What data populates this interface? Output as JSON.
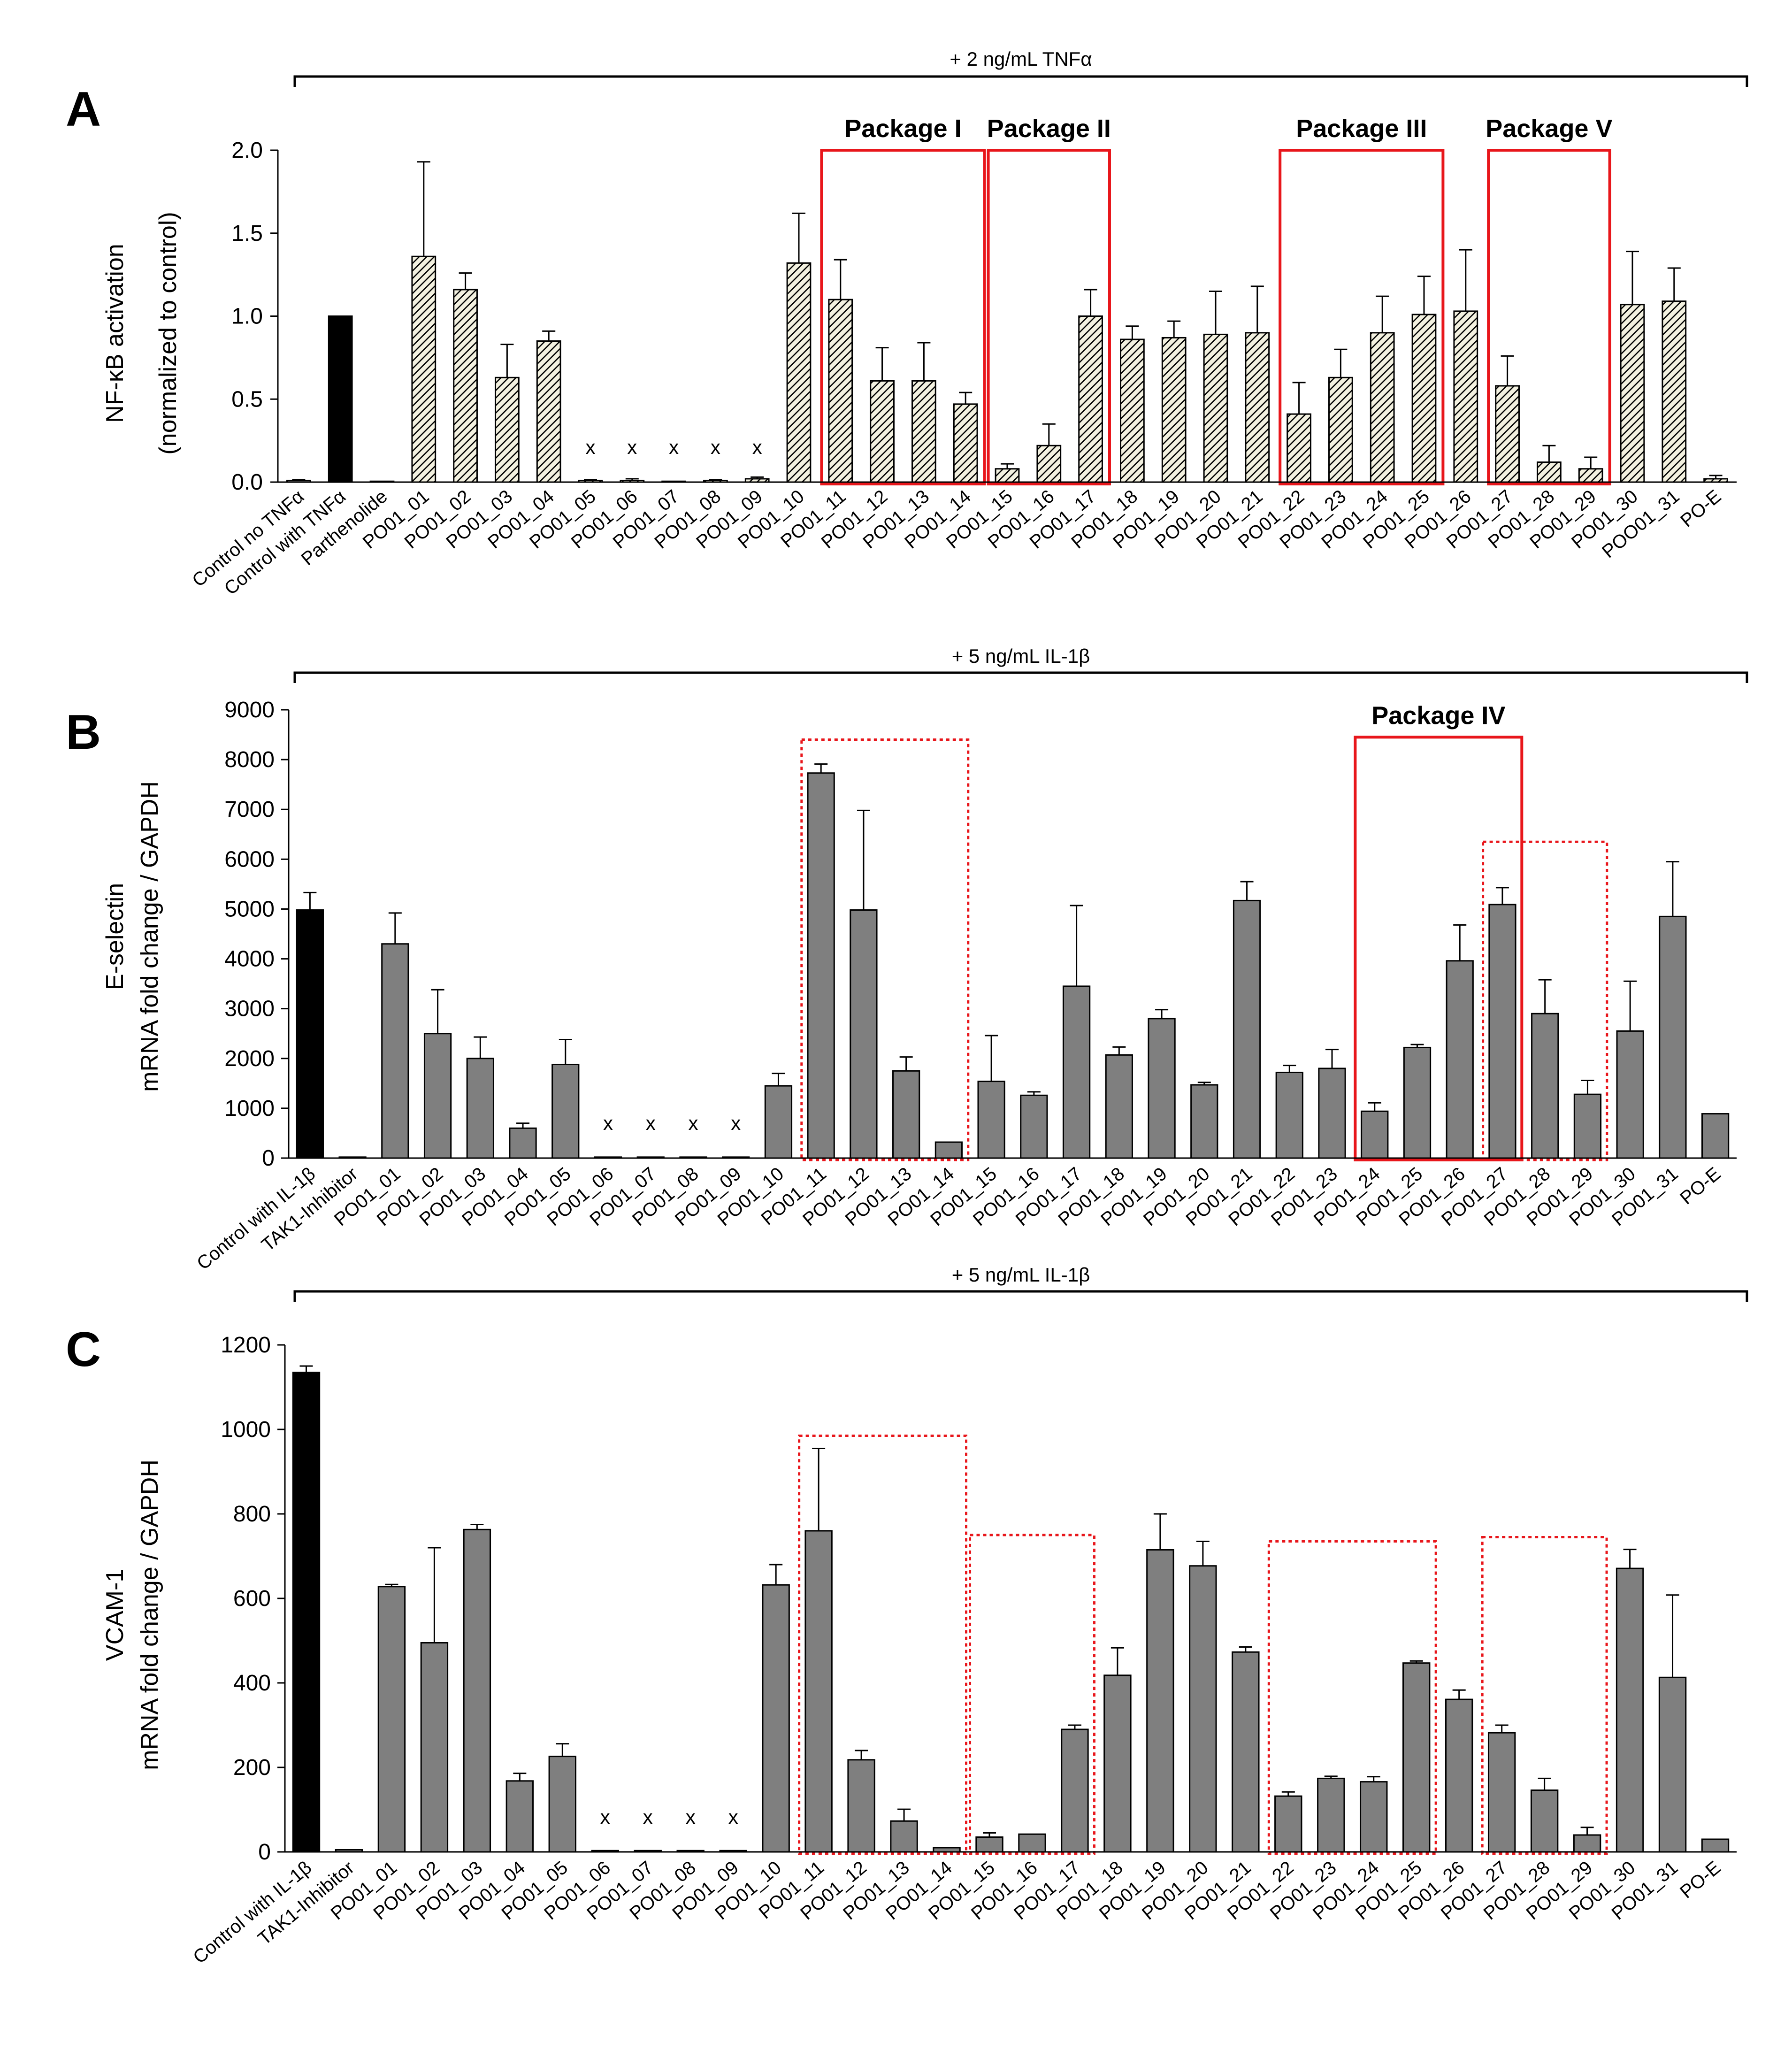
{
  "figure_colors": {
    "bar_control": "#000000",
    "bar_gray": "#7f7f7f",
    "bar_hatch_bg": "#f3f1e0",
    "box_red": "#e8161b"
  },
  "chart_data": [
    {
      "panel": "A",
      "type": "bar",
      "treatment": "+ 2 ng/mL TNFα",
      "ylabel_lines": [
        "NF-κB activation",
        "(normalized to control)"
      ],
      "ylim": [
        0,
        2.0
      ],
      "yticks": [
        "0.0",
        "0.5",
        "1.0",
        "1.5",
        "2.0"
      ],
      "tick_values": [
        0,
        0.5,
        1.0,
        1.5,
        2.0
      ],
      "categories": [
        "Control no TNFα",
        "Control with TNFα",
        "Parthenolide",
        "PO01_01",
        "PO01_02",
        "PO01_03",
        "PO01_04",
        "PO01_05",
        "PO01_06",
        "PO01_07",
        "PO01_08",
        "PO01_09",
        "PO01_10",
        "PO01_11",
        "PO01_12",
        "PO01_13",
        "PO01_14",
        "PO01_15",
        "PO01_16",
        "PO01_17",
        "PO01_18",
        "PO01_19",
        "PO01_20",
        "PO01_21",
        "PO01_22",
        "PO01_23",
        "PO01_24",
        "PO01_25",
        "PO01_26",
        "PO01_27",
        "PO01_28",
        "PO01_29",
        "PO01_30",
        "POO01_31",
        "PO-E"
      ],
      "values": [
        0.01,
        1.0,
        0.005,
        1.36,
        1.16,
        0.63,
        0.85,
        0.01,
        0.01,
        0.005,
        0.01,
        0.02,
        1.32,
        1.1,
        0.61,
        0.61,
        0.47,
        0.08,
        0.22,
        1.0,
        0.86,
        0.87,
        0.89,
        0.9,
        0.41,
        0.63,
        0.9,
        1.01,
        1.03,
        0.58,
        0.12,
        0.08,
        1.07,
        1.09,
        0.02
      ],
      "errors": [
        0.005,
        0,
        0,
        0.57,
        0.1,
        0.2,
        0.06,
        0.005,
        0.01,
        0,
        0.005,
        0.01,
        0.3,
        0.24,
        0.2,
        0.23,
        0.07,
        0.03,
        0.13,
        0.16,
        0.08,
        0.1,
        0.26,
        0.28,
        0.19,
        0.17,
        0.22,
        0.23,
        0.37,
        0.18,
        0.1,
        0.07,
        0.32,
        0.2,
        0.02
      ],
      "control_index": 1,
      "x_marks": [
        "x",
        "x",
        "x",
        "x",
        "x"
      ],
      "x_mark_indices": [
        7,
        8,
        9,
        10,
        11
      ],
      "packages": [
        {
          "label": "Package I",
          "start": 13,
          "end": 16,
          "top_value": 2.0,
          "style": "solid"
        },
        {
          "label": "Package II",
          "start": 17,
          "end": 19,
          "top_value": 2.0,
          "style": "solid"
        },
        {
          "label": "Package III",
          "start": 24,
          "end": 27,
          "top_value": 2.0,
          "style": "solid"
        },
        {
          "label": "Package V",
          "start": 29,
          "end": 31,
          "top_value": 2.0,
          "style": "solid"
        }
      ]
    },
    {
      "panel": "B",
      "type": "bar",
      "treatment": "+ 5 ng/mL IL-1β",
      "ylabel_lines": [
        "E-selectin",
        "mRNA fold change / GAPDH"
      ],
      "ylim": [
        0,
        9000
      ],
      "yticks": [
        "0",
        "1000",
        "2000",
        "3000",
        "4000",
        "5000",
        "6000",
        "7000",
        "8000",
        "9000"
      ],
      "tick_values": [
        0,
        1000,
        2000,
        3000,
        4000,
        5000,
        6000,
        7000,
        8000,
        9000
      ],
      "categories": [
        "Control with IL-1β",
        "TAK1-Inhibitor",
        "PO01_01",
        "PO01_02",
        "PO01_03",
        "PO01_04",
        "PO01_05",
        "PO01_06",
        "PO01_07",
        "PO01_08",
        "PO01_09",
        "PO01_10",
        "PO01_11",
        "PO01_12",
        "PO01_13",
        "PO01_14",
        "PO01_15",
        "PO01_16",
        "PO01_17",
        "PO01_18",
        "PO01_19",
        "PO01_20",
        "PO01_21",
        "PO01_22",
        "PO01_23",
        "PO01_24",
        "PO01_25",
        "PO01_26",
        "PO01_27",
        "PO01_28",
        "PO01_29",
        "PO01_30",
        "PO01_31",
        "PO-E"
      ],
      "values": [
        4980,
        20,
        4300,
        2500,
        2000,
        600,
        1880,
        20,
        20,
        20,
        20,
        1450,
        7730,
        4980,
        1750,
        320,
        1540,
        1260,
        3450,
        2070,
        2800,
        1470,
        5170,
        1720,
        1800,
        940,
        2220,
        3960,
        5090,
        2900,
        1280,
        2550,
        4850,
        890
      ],
      "errors": [
        350,
        0,
        620,
        880,
        430,
        100,
        500,
        0,
        0,
        0,
        0,
        250,
        180,
        2000,
        280,
        0,
        920,
        70,
        1620,
        160,
        180,
        50,
        380,
        140,
        380,
        170,
        60,
        720,
        340,
        680,
        280,
        1000,
        1100,
        0
      ],
      "control_index": 0,
      "x_marks": [
        "x",
        "x",
        "x",
        "x"
      ],
      "x_mark_indices": [
        7,
        8,
        9,
        10
      ],
      "packages": [
        {
          "label": "",
          "start": 12,
          "end": 15,
          "top_value": 8400,
          "style": "dotted"
        },
        {
          "label": "Package IV",
          "start": 25,
          "end": 28,
          "top_value": 8450,
          "style": "solid"
        },
        {
          "label": "",
          "start": 28,
          "end": 30,
          "top_value": 6350,
          "style": "dotted"
        }
      ]
    },
    {
      "panel": "C",
      "type": "bar",
      "treatment": "+ 5 ng/mL IL-1β",
      "ylabel_lines": [
        "VCAM-1",
        "mRNA fold change / GAPDH"
      ],
      "ylim": [
        0,
        1200
      ],
      "yticks": [
        "0",
        "200",
        "400",
        "600",
        "800",
        "1000",
        "1200"
      ],
      "tick_values": [
        0,
        200,
        400,
        600,
        800,
        1000,
        1200
      ],
      "categories": [
        "Control with IL-1β",
        "TAK1-Inhibitor",
        "PO01_01",
        "PO01_02",
        "PO01_03",
        "PO01_04",
        "PO01_05",
        "PO01_06",
        "PO01_07",
        "PO01_08",
        "PO01_09",
        "PO01_10",
        "PO01_11",
        "PO01_12",
        "PO01_13",
        "PO01_14",
        "PO01_15",
        "PO01_16",
        "PO01_17",
        "PO01_18",
        "PO01_19",
        "PO01_20",
        "PO01_21",
        "PO01_22",
        "PO01_23",
        "PO01_24",
        "PO01_25",
        "PO01_26",
        "PO01_27",
        "PO01_28",
        "PO01_29",
        "PO01_30",
        "PO01_31",
        "PO-E"
      ],
      "values": [
        1135,
        5,
        628,
        495,
        763,
        168,
        226,
        3,
        3,
        3,
        3,
        632,
        760,
        218,
        73,
        10,
        35,
        42,
        290,
        418,
        715,
        677,
        473,
        132,
        174,
        166,
        447,
        361,
        282,
        146,
        40,
        671,
        413,
        30
      ],
      "errors": [
        15,
        0,
        5,
        225,
        12,
        18,
        30,
        0,
        0,
        0,
        0,
        48,
        195,
        22,
        28,
        0,
        10,
        0,
        10,
        65,
        85,
        58,
        12,
        10,
        5,
        12,
        5,
        22,
        18,
        28,
        18,
        45,
        195,
        0
      ],
      "control_index": 0,
      "x_marks": [
        "x",
        "x",
        "x",
        "x"
      ],
      "x_mark_indices": [
        7,
        8,
        9,
        10
      ],
      "packages": [
        {
          "label": "",
          "start": 12,
          "end": 15,
          "top_value": 985,
          "style": "dotted"
        },
        {
          "label": "",
          "start": 16,
          "end": 18,
          "top_value": 750,
          "style": "dotted"
        },
        {
          "label": "",
          "start": 23,
          "end": 26,
          "top_value": 735,
          "style": "dotted"
        },
        {
          "label": "",
          "start": 28,
          "end": 30,
          "top_value": 745,
          "style": "dotted"
        }
      ]
    }
  ]
}
